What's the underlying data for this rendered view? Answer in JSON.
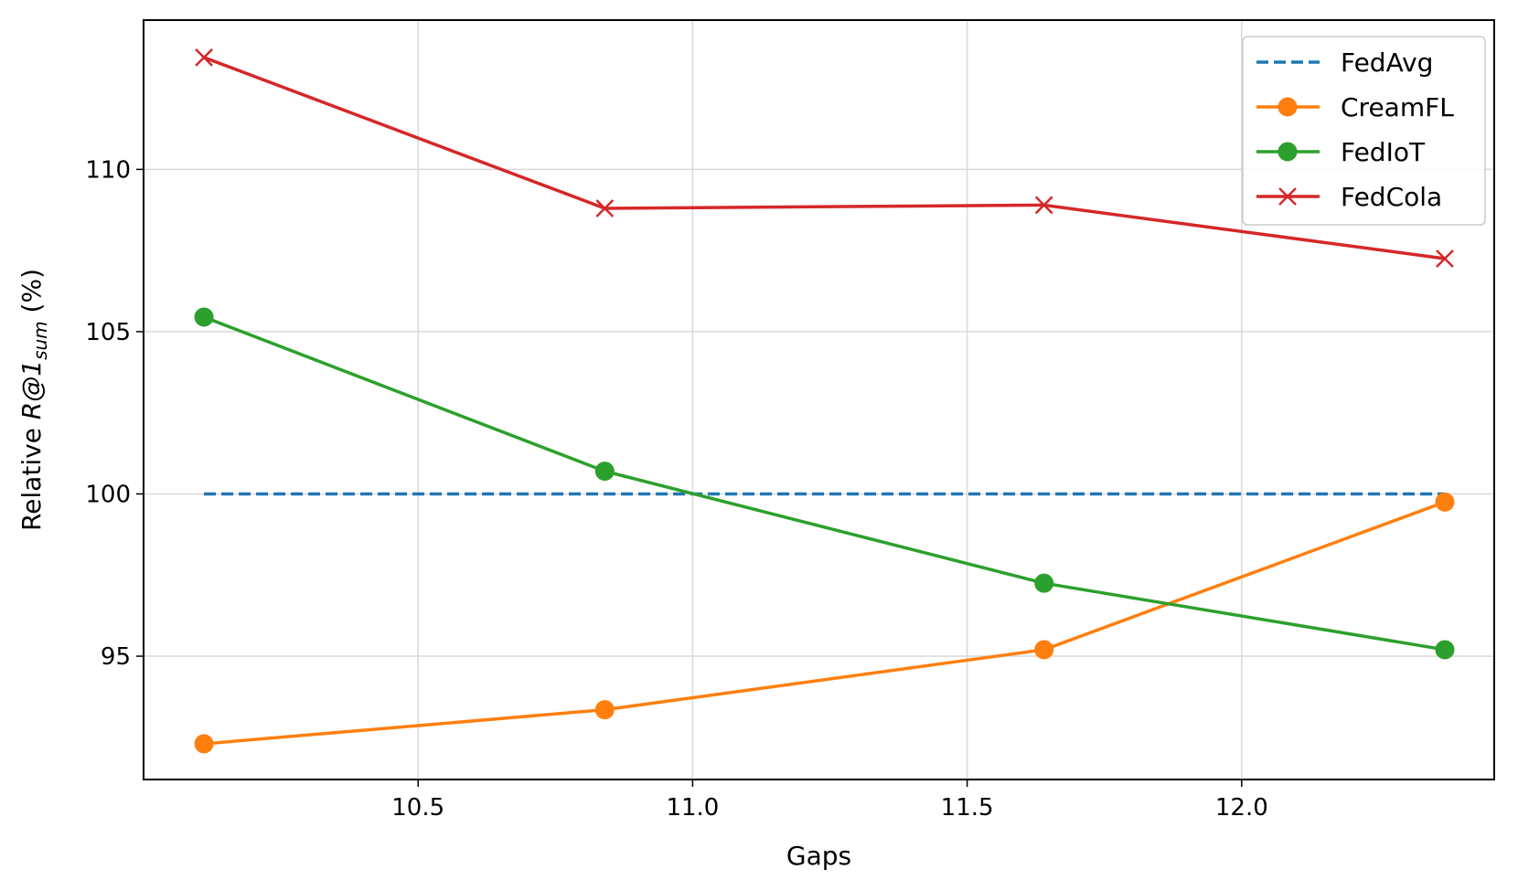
{
  "chart_data": {
    "type": "line",
    "xlabel": "Gaps",
    "ylabel": {
      "prefix": "Relative ",
      "main": "R@1",
      "subscript": "sum",
      "suffix": " (%)"
    },
    "xlim": [
      10.0,
      12.46
    ],
    "ylim": [
      91.2,
      114.6
    ],
    "xticks": [
      10.5,
      11.0,
      11.5,
      12.0
    ],
    "xtick_labels": [
      "10.5",
      "11.0",
      "11.5",
      "12.0"
    ],
    "yticks": [
      95,
      100,
      105,
      110
    ],
    "ytick_labels": [
      "95",
      "100",
      "105",
      "110"
    ],
    "grid": true,
    "legend_position": "top-right",
    "series": [
      {
        "name": "FedAvg",
        "color": "#1f77b4",
        "style": "dashed",
        "marker": "none",
        "x": [
          10.11,
          12.37
        ],
        "y": [
          100,
          100
        ]
      },
      {
        "name": "CreamFL",
        "color": "#ff7f0e",
        "style": "solid",
        "marker": "circle",
        "x": [
          10.11,
          10.84,
          11.64,
          12.37
        ],
        "y": [
          92.3,
          93.35,
          95.2,
          99.75
        ]
      },
      {
        "name": "FedIoT",
        "color": "#2ca02c",
        "style": "solid",
        "marker": "circle",
        "x": [
          10.11,
          10.84,
          11.64,
          12.37
        ],
        "y": [
          105.45,
          100.7,
          97.25,
          95.2
        ]
      },
      {
        "name": "FedCola",
        "color": "#d62728",
        "style": "solid",
        "marker": "x",
        "x": [
          10.11,
          10.84,
          11.64,
          12.37
        ],
        "y": [
          113.45,
          108.8,
          108.9,
          107.25
        ]
      }
    ]
  }
}
